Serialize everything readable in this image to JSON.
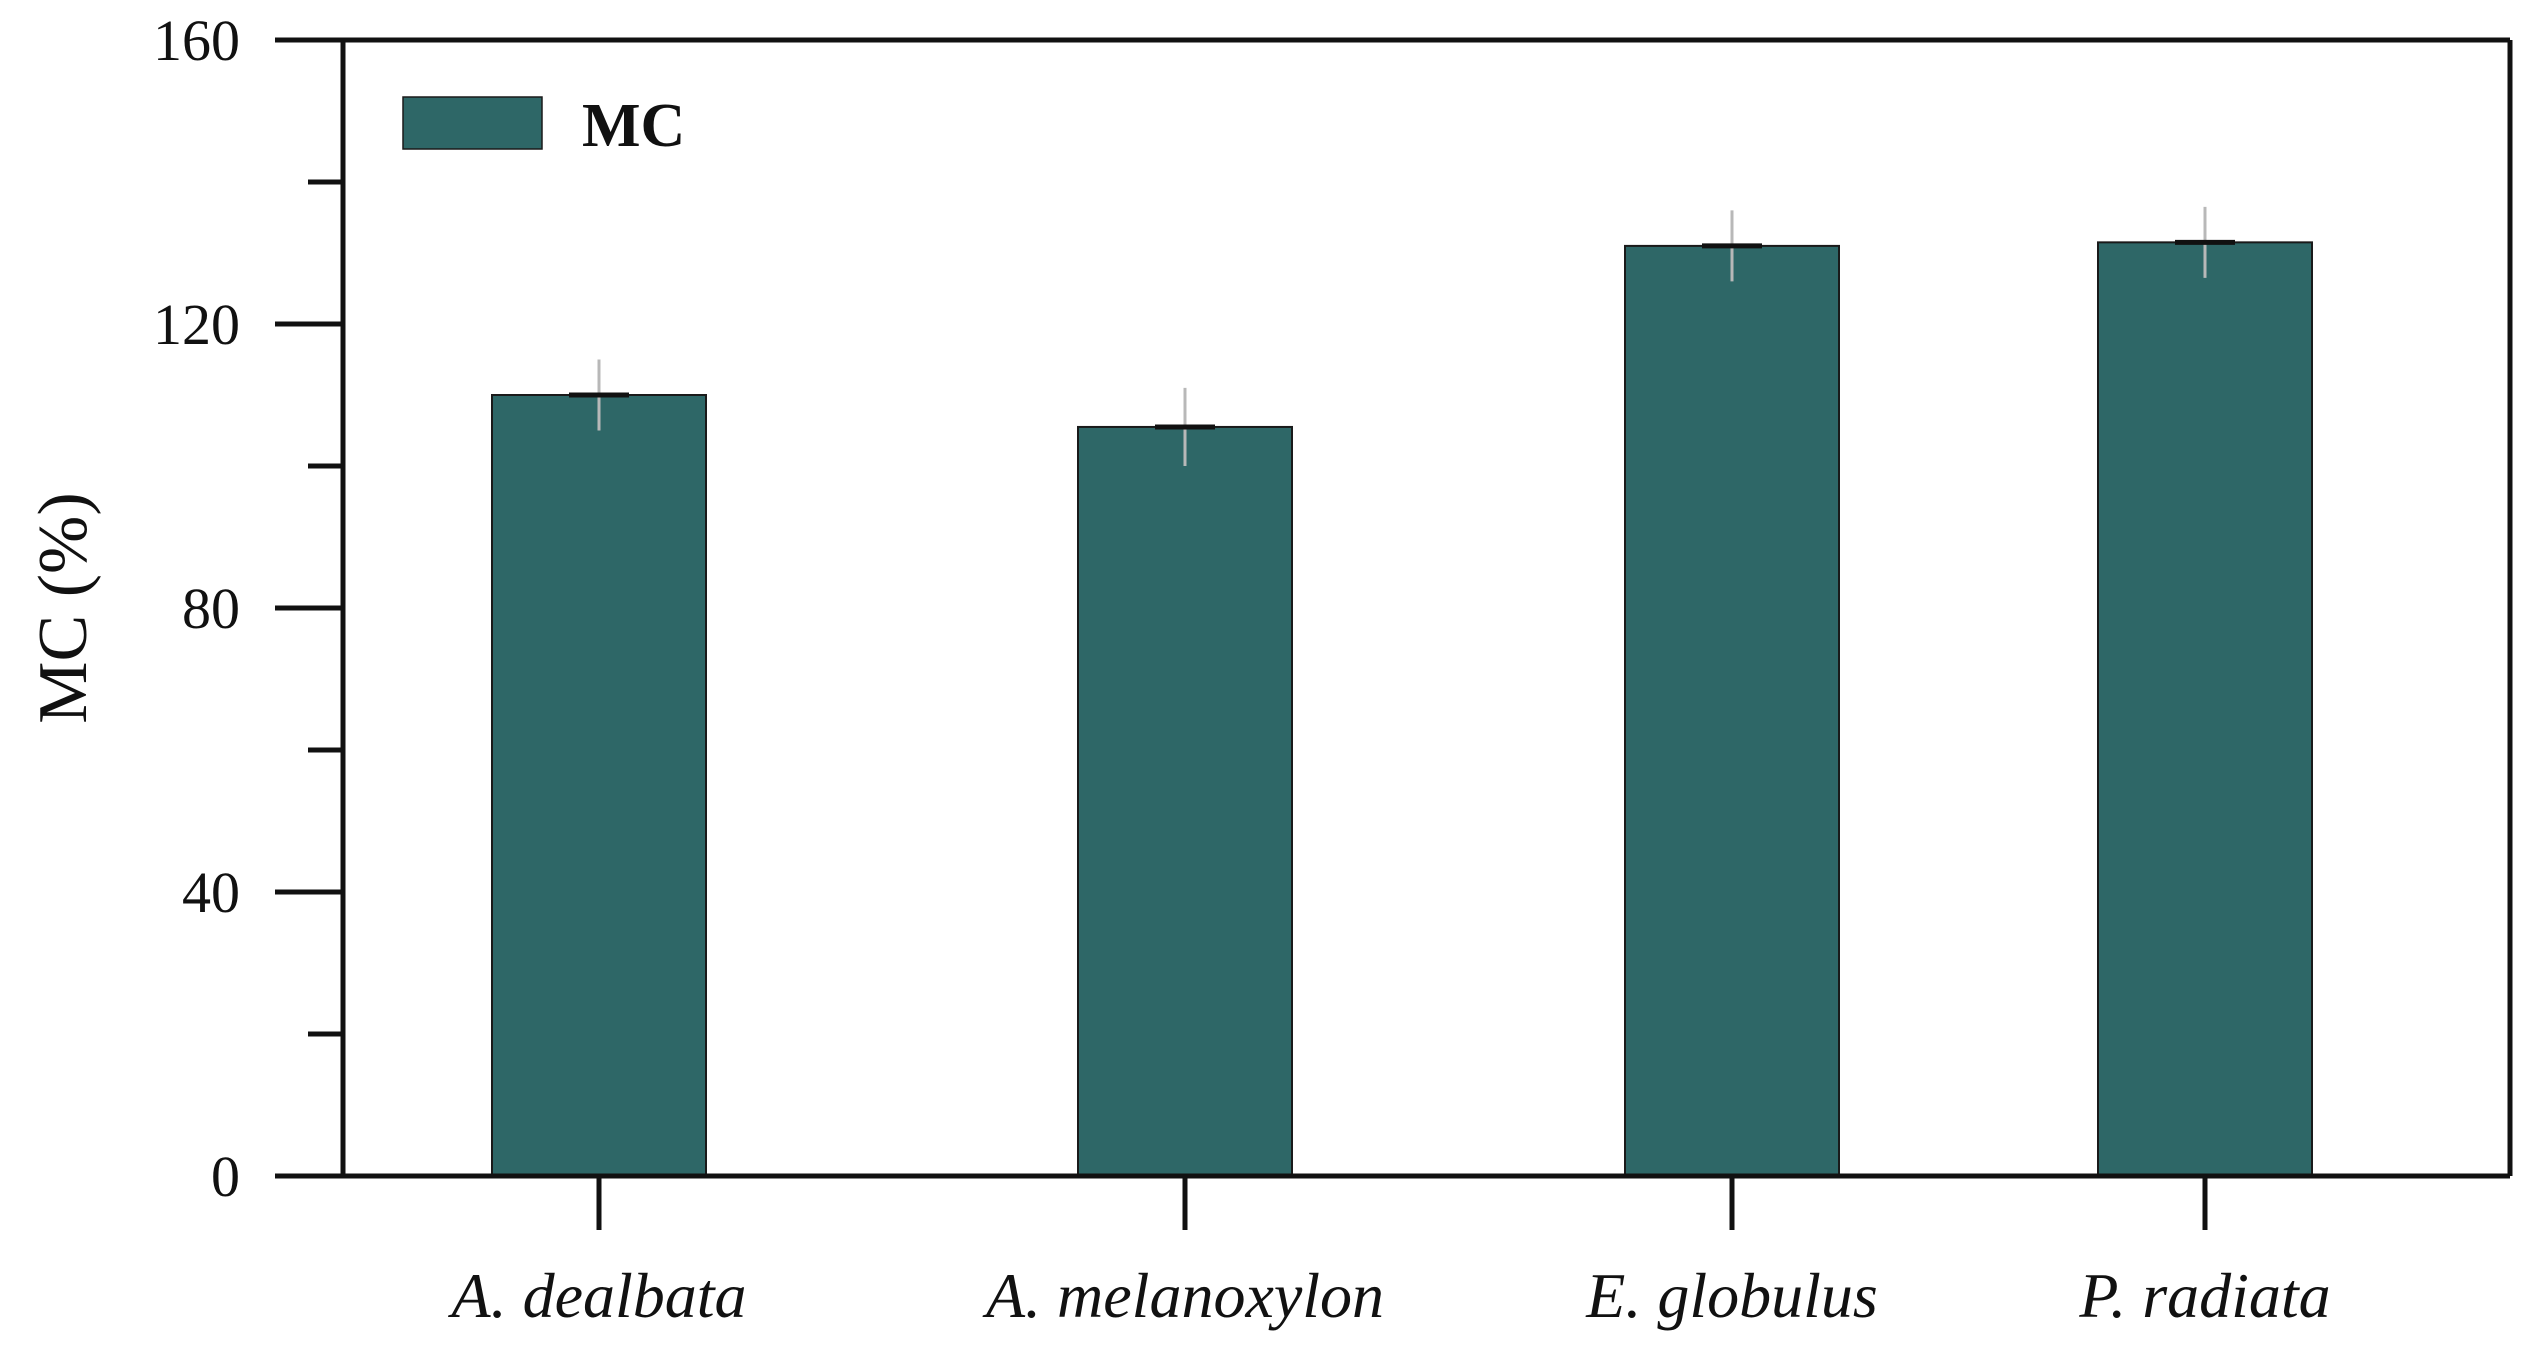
{
  "chart_data": {
    "type": "bar",
    "categories": [
      "A. dealbata",
      "A. melanoxylon",
      "E. globulus",
      "P. radiata"
    ],
    "series": [
      {
        "name": "MC",
        "values": [
          110,
          105.5,
          131,
          131.5
        ],
        "error": [
          5,
          5.5,
          5,
          5
        ],
        "color": "#2e6767"
      }
    ],
    "xlabel": "",
    "ylabel": "MC (%)",
    "ylim": [
      0,
      160
    ],
    "yticks": [
      0,
      40,
      80,
      120,
      160
    ],
    "yticks_minor": [
      20,
      60,
      100,
      140
    ],
    "ytick_labels": [
      "0",
      "40",
      "80",
      "120",
      "160"
    ],
    "grid": false,
    "legend_position": "top-left",
    "colors": {
      "bar": "#2e6767",
      "axis": "#111111",
      "error_bar": "#b8b8b8"
    }
  }
}
